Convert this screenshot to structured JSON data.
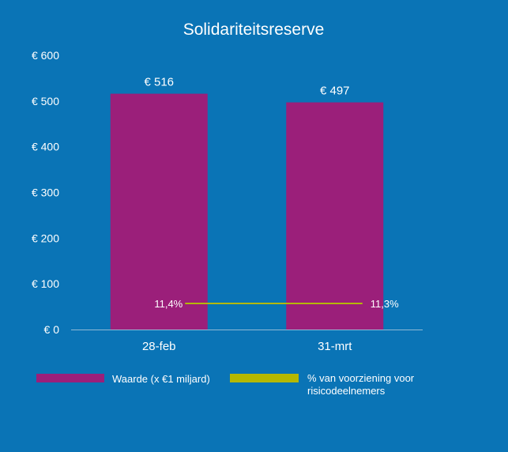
{
  "chart_data": {
    "type": "bar",
    "title": "Solidariteitsreserve",
    "categories": [
      "28-feb",
      "31-mrt"
    ],
    "y_ticks": [
      "€ 0",
      "€ 100",
      "€ 200",
      "€ 300",
      "€ 400",
      "€ 500",
      "€ 600"
    ],
    "ylim": [
      0,
      600
    ],
    "series": [
      {
        "name": "Waarde (x €1 miljard)",
        "type": "bar",
        "color": "#9b1f7a",
        "values": [
          516,
          497
        ],
        "labels": [
          "€ 516",
          "€ 497"
        ]
      },
      {
        "name": "% van voorziening voor risicodeelnemers",
        "type": "line",
        "color": "#b5b800",
        "values": [
          11.4,
          11.3
        ],
        "labels": [
          "11,4%",
          "11,3%"
        ]
      }
    ],
    "legend_position": "bottom",
    "grid": false
  }
}
